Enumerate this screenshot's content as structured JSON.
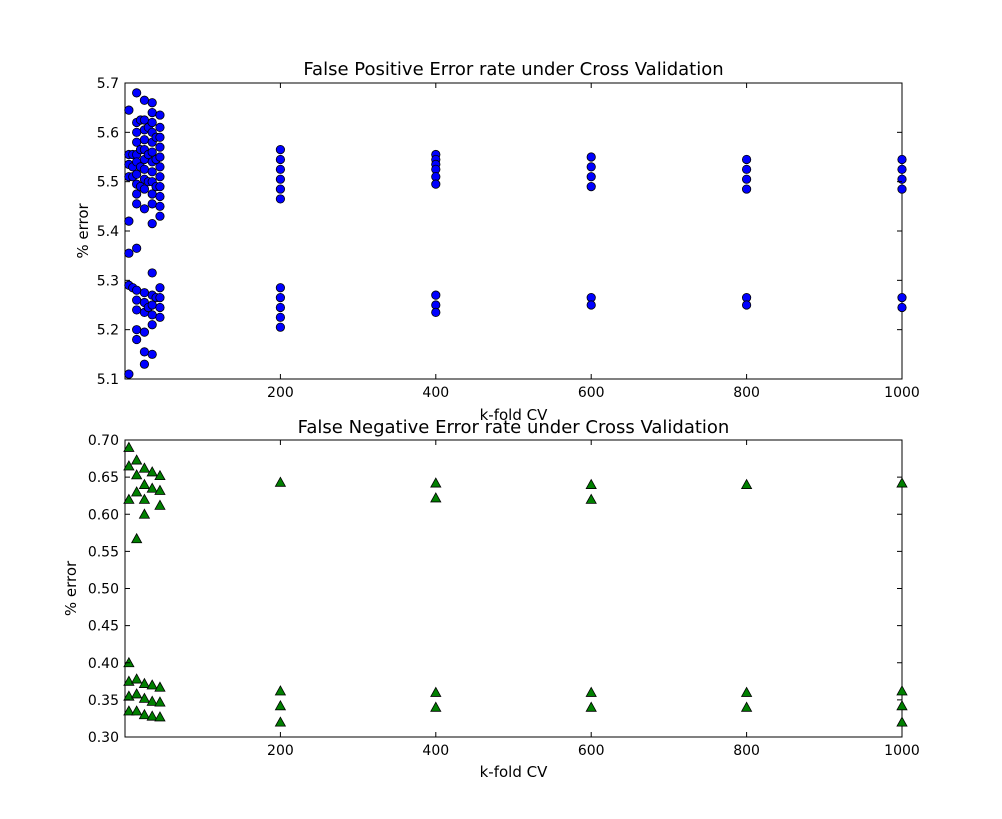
{
  "chart_data": [
    {
      "type": "scatter",
      "title": "False Positive Error rate under Cross Validation",
      "xlabel": "k-fold CV",
      "ylabel": "% error",
      "xlim": [
        0,
        1000
      ],
      "ylim": [
        5.1,
        5.7
      ],
      "x_ticks": [
        200,
        400,
        600,
        800,
        1000
      ],
      "y_ticks": [
        5.1,
        5.2,
        5.3,
        5.4,
        5.5,
        5.6,
        5.7
      ],
      "tick_decimals": 1,
      "grid": false,
      "marker": "circle",
      "color": "#0000ff",
      "points": [
        [
          5,
          5.645
        ],
        [
          5,
          5.555
        ],
        [
          5,
          5.535
        ],
        [
          5,
          5.51
        ],
        [
          5,
          5.42
        ],
        [
          5,
          5.355
        ],
        [
          5,
          5.29
        ],
        [
          5,
          5.11
        ],
        [
          10,
          5.555
        ],
        [
          10,
          5.53
        ],
        [
          10,
          5.51
        ],
        [
          10,
          5.285
        ],
        [
          15,
          5.68
        ],
        [
          15,
          5.62
        ],
        [
          15,
          5.6
        ],
        [
          15,
          5.58
        ],
        [
          15,
          5.555
        ],
        [
          15,
          5.54
        ],
        [
          15,
          5.515
        ],
        [
          15,
          5.495
        ],
        [
          15,
          5.475
        ],
        [
          15,
          5.455
        ],
        [
          15,
          5.365
        ],
        [
          15,
          5.28
        ],
        [
          15,
          5.26
        ],
        [
          15,
          5.24
        ],
        [
          15,
          5.2
        ],
        [
          15,
          5.18
        ],
        [
          20,
          5.625
        ],
        [
          20,
          5.565
        ],
        [
          20,
          5.53
        ],
        [
          20,
          5.49
        ],
        [
          25,
          5.665
        ],
        [
          25,
          5.625
        ],
        [
          25,
          5.605
        ],
        [
          25,
          5.585
        ],
        [
          25,
          5.565
        ],
        [
          25,
          5.545
        ],
        [
          25,
          5.525
        ],
        [
          25,
          5.505
        ],
        [
          25,
          5.485
        ],
        [
          25,
          5.445
        ],
        [
          25,
          5.275
        ],
        [
          25,
          5.255
        ],
        [
          25,
          5.235
        ],
        [
          25,
          5.195
        ],
        [
          25,
          5.155
        ],
        [
          25,
          5.13
        ],
        [
          30,
          5.61
        ],
        [
          30,
          5.555
        ],
        [
          30,
          5.5
        ],
        [
          30,
          5.245
        ],
        [
          35,
          5.66
        ],
        [
          35,
          5.64
        ],
        [
          35,
          5.62
        ],
        [
          35,
          5.6
        ],
        [
          35,
          5.58
        ],
        [
          35,
          5.56
        ],
        [
          35,
          5.54
        ],
        [
          35,
          5.52
        ],
        [
          35,
          5.5
        ],
        [
          35,
          5.475
        ],
        [
          35,
          5.455
        ],
        [
          35,
          5.415
        ],
        [
          35,
          5.315
        ],
        [
          35,
          5.27
        ],
        [
          35,
          5.25
        ],
        [
          35,
          5.23
        ],
        [
          35,
          5.21
        ],
        [
          35,
          5.15
        ],
        [
          40,
          5.59
        ],
        [
          40,
          5.545
        ],
        [
          40,
          5.49
        ],
        [
          40,
          5.265
        ],
        [
          45,
          5.635
        ],
        [
          45,
          5.61
        ],
        [
          45,
          5.59
        ],
        [
          45,
          5.57
        ],
        [
          45,
          5.55
        ],
        [
          45,
          5.53
        ],
        [
          45,
          5.51
        ],
        [
          45,
          5.49
        ],
        [
          45,
          5.47
        ],
        [
          45,
          5.45
        ],
        [
          45,
          5.43
        ],
        [
          45,
          5.285
        ],
        [
          45,
          5.265
        ],
        [
          45,
          5.245
        ],
        [
          45,
          5.225
        ],
        [
          200,
          5.565
        ],
        [
          200,
          5.545
        ],
        [
          200,
          5.525
        ],
        [
          200,
          5.505
        ],
        [
          200,
          5.485
        ],
        [
          200,
          5.465
        ],
        [
          200,
          5.285
        ],
        [
          200,
          5.265
        ],
        [
          200,
          5.245
        ],
        [
          200,
          5.225
        ],
        [
          200,
          5.205
        ],
        [
          400,
          5.555
        ],
        [
          400,
          5.545
        ],
        [
          400,
          5.535
        ],
        [
          400,
          5.525
        ],
        [
          400,
          5.51
        ],
        [
          400,
          5.495
        ],
        [
          400,
          5.27
        ],
        [
          400,
          5.25
        ],
        [
          400,
          5.235
        ],
        [
          600,
          5.55
        ],
        [
          600,
          5.53
        ],
        [
          600,
          5.51
        ],
        [
          600,
          5.49
        ],
        [
          600,
          5.265
        ],
        [
          600,
          5.25
        ],
        [
          800,
          5.545
        ],
        [
          800,
          5.525
        ],
        [
          800,
          5.505
        ],
        [
          800,
          5.485
        ],
        [
          800,
          5.265
        ],
        [
          800,
          5.25
        ],
        [
          1000,
          5.545
        ],
        [
          1000,
          5.525
        ],
        [
          1000,
          5.505
        ],
        [
          1000,
          5.485
        ],
        [
          1000,
          5.265
        ],
        [
          1000,
          5.245
        ]
      ]
    },
    {
      "type": "scatter",
      "title": "False Negative Error rate under Cross Validation",
      "xlabel": "k-fold CV",
      "ylabel": "% error",
      "xlim": [
        0,
        1000
      ],
      "ylim": [
        0.3,
        0.7
      ],
      "x_ticks": [
        200,
        400,
        600,
        800,
        1000
      ],
      "y_ticks": [
        0.3,
        0.35,
        0.4,
        0.45,
        0.5,
        0.55,
        0.6,
        0.65,
        0.7
      ],
      "tick_decimals": 2,
      "grid": false,
      "marker": "triangle",
      "color": "#008000",
      "points": [
        [
          5,
          0.69
        ],
        [
          5,
          0.665
        ],
        [
          5,
          0.62
        ],
        [
          5,
          0.4
        ],
        [
          5,
          0.375
        ],
        [
          5,
          0.355
        ],
        [
          5,
          0.335
        ],
        [
          15,
          0.673
        ],
        [
          15,
          0.653
        ],
        [
          15,
          0.63
        ],
        [
          15,
          0.567
        ],
        [
          15,
          0.378
        ],
        [
          15,
          0.358
        ],
        [
          15,
          0.335
        ],
        [
          25,
          0.662
        ],
        [
          25,
          0.64
        ],
        [
          25,
          0.62
        ],
        [
          25,
          0.6
        ],
        [
          25,
          0.372
        ],
        [
          25,
          0.352
        ],
        [
          25,
          0.33
        ],
        [
          35,
          0.657
        ],
        [
          35,
          0.635
        ],
        [
          35,
          0.37
        ],
        [
          35,
          0.348
        ],
        [
          35,
          0.328
        ],
        [
          45,
          0.652
        ],
        [
          45,
          0.632
        ],
        [
          45,
          0.612
        ],
        [
          45,
          0.367
        ],
        [
          45,
          0.347
        ],
        [
          45,
          0.327
        ],
        [
          200,
          0.643
        ],
        [
          200,
          0.362
        ],
        [
          200,
          0.342
        ],
        [
          200,
          0.32
        ],
        [
          400,
          0.642
        ],
        [
          400,
          0.622
        ],
        [
          400,
          0.36
        ],
        [
          400,
          0.34
        ],
        [
          600,
          0.64
        ],
        [
          600,
          0.62
        ],
        [
          600,
          0.36
        ],
        [
          600,
          0.34
        ],
        [
          800,
          0.64
        ],
        [
          800,
          0.36
        ],
        [
          800,
          0.34
        ],
        [
          1000,
          0.642
        ],
        [
          1000,
          0.362
        ],
        [
          1000,
          0.342
        ],
        [
          1000,
          0.32
        ]
      ]
    }
  ]
}
